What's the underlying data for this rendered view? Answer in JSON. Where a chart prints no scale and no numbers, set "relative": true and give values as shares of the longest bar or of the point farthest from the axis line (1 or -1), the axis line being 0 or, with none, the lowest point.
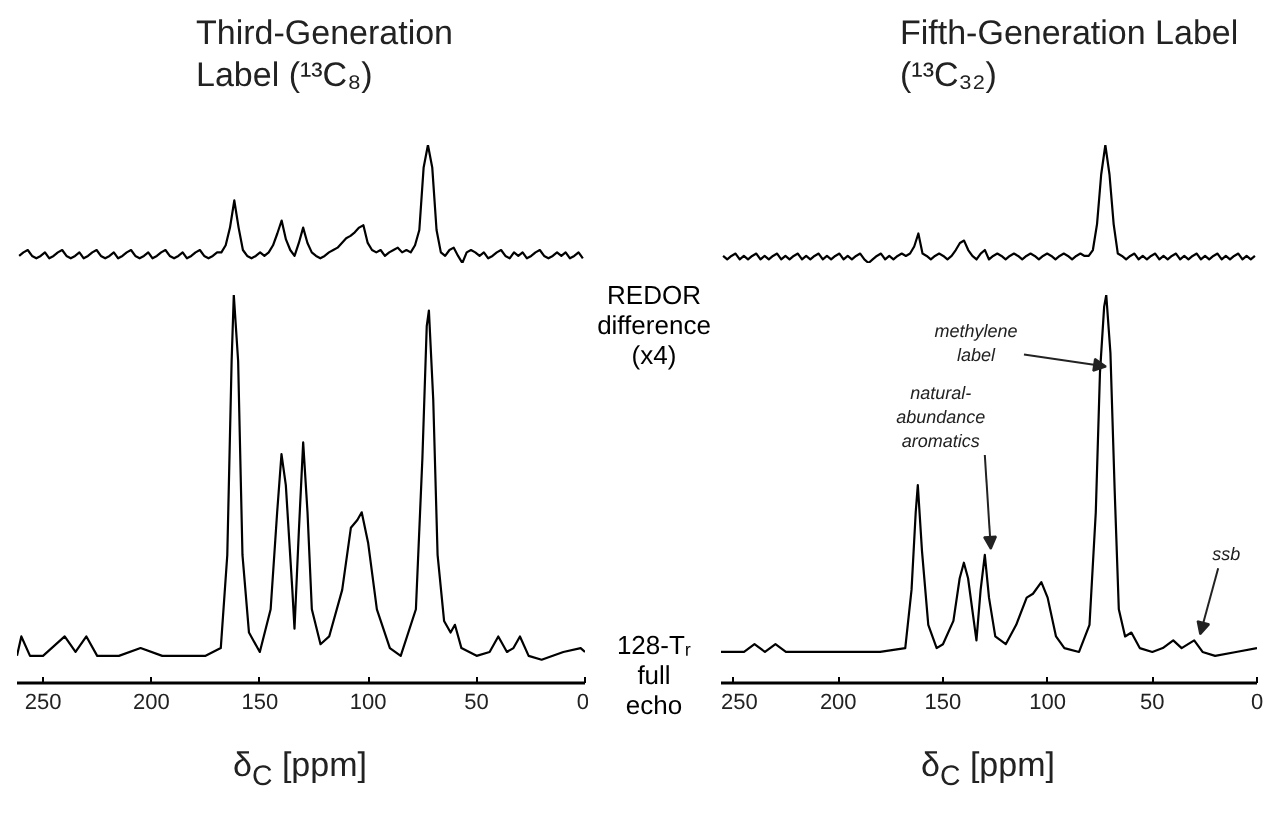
{
  "chart_data": [
    {
      "type": "line",
      "title": "Third-Generation Label (¹³C₈)",
      "relative": true,
      "tick_labels": false,
      "categories": [
        null,
        null,
        null,
        null,
        null,
        null,
        null,
        null,
        null,
        null,
        null,
        null,
        null,
        null,
        null,
        null,
        null,
        null,
        null,
        null,
        null,
        null,
        null,
        null,
        null,
        null,
        null,
        null,
        null,
        null,
        null,
        null,
        null,
        null,
        null,
        null,
        null,
        null,
        null,
        null,
        null,
        null,
        null,
        null,
        null,
        null,
        null,
        null,
        null,
        null,
        null,
        null,
        null,
        null,
        null,
        null,
        null,
        null,
        null,
        null,
        null,
        null,
        null,
        null,
        null,
        null,
        null,
        null,
        null,
        null,
        null,
        null,
        null,
        null,
        null,
        null,
        null,
        null,
        null,
        null,
        null,
        null,
        null,
        null,
        null,
        null,
        null,
        null,
        null,
        null,
        null,
        null,
        null,
        null,
        null,
        null,
        null,
        null,
        null,
        null,
        null,
        null,
        null,
        null,
        null,
        null,
        null,
        null,
        null,
        null,
        null,
        null,
        null,
        null,
        null,
        null,
        null,
        null,
        null,
        null,
        null,
        null,
        null,
        null,
        null,
        null,
        null,
        null,
        null,
        null,
        null,
        null
      ],
      "series": [
        {
          "name": "REDOR difference (x4)",
          "color": "#000000",
          "values": [
            0.06,
            0.09,
            0.11,
            0.06,
            0.04,
            0.06,
            0.09,
            0.04,
            0.06,
            0.09,
            0.11,
            0.06,
            0.04,
            0.06,
            0.09,
            0.04,
            0.06,
            0.09,
            0.11,
            0.06,
            0.04,
            0.06,
            0.09,
            0.04,
            0.06,
            0.09,
            0.11,
            0.06,
            0.04,
            0.06,
            0.09,
            0.04,
            0.06,
            0.09,
            0.11,
            0.06,
            0.04,
            0.06,
            0.09,
            0.04,
            0.06,
            0.09,
            0.11,
            0.06,
            0.04,
            0.06,
            0.09,
            0.09,
            0.15,
            0.3,
            0.53,
            0.3,
            0.11,
            0.06,
            0.04,
            0.06,
            0.09,
            0.06,
            0.09,
            0.15,
            0.25,
            0.36,
            0.2,
            0.11,
            0.06,
            0.17,
            0.3,
            0.17,
            0.09,
            0.06,
            0.04,
            0.06,
            0.09,
            0.11,
            0.13,
            0.17,
            0.21,
            0.23,
            0.26,
            0.3,
            0.32,
            0.17,
            0.11,
            0.09,
            0.11,
            0.06,
            0.09,
            0.11,
            0.13,
            0.09,
            0.11,
            0.09,
            0.15,
            0.28,
            0.81,
            1.0,
            0.81,
            0.28,
            0.09,
            0.06,
            0.11,
            0.13,
            0.06,
            0.0,
            0.09,
            0.11,
            0.09,
            0.06,
            0.09,
            0.04,
            0.06,
            0.09,
            0.11,
            0.06,
            0.04,
            0.09,
            0.06,
            0.09,
            0.04,
            0.06,
            0.09,
            0.11,
            0.06,
            0.04,
            0.06,
            0.09,
            0.06,
            0.09,
            0.04,
            0.06,
            0.09,
            0.04
          ]
        }
      ]
    },
    {
      "type": "line",
      "xlabel": "δ$_{C}$ [ppm]",
      "relative": true,
      "xlim": [
        262,
        0
      ],
      "xticks": [
        250,
        200,
        150,
        100,
        50,
        0
      ],
      "tick_labels": "x",
      "x": [
        262,
        260,
        256,
        250,
        240,
        235,
        230,
        225,
        215,
        205,
        195,
        175,
        168,
        165,
        163,
        162,
        160,
        158,
        155,
        150,
        145,
        142,
        140,
        138,
        135,
        134,
        132,
        130,
        128,
        126,
        122,
        118,
        112,
        108,
        105,
        103,
        100,
        96,
        90,
        85,
        78,
        75,
        73,
        72,
        70,
        68,
        65,
        62,
        60,
        57,
        50,
        44,
        40,
        36,
        33,
        30,
        26,
        20,
        10,
        2,
        0
      ],
      "series": [
        {
          "name": "128-Tᵣ full echo",
          "color": "#000000",
          "values": [
            0.07,
            0.12,
            0.07,
            0.07,
            0.12,
            0.08,
            0.12,
            0.07,
            0.07,
            0.09,
            0.07,
            0.07,
            0.09,
            0.33,
            0.83,
            1.0,
            0.83,
            0.33,
            0.13,
            0.08,
            0.19,
            0.44,
            0.59,
            0.51,
            0.24,
            0.14,
            0.39,
            0.62,
            0.44,
            0.19,
            0.1,
            0.12,
            0.24,
            0.4,
            0.42,
            0.44,
            0.36,
            0.19,
            0.09,
            0.07,
            0.19,
            0.58,
            0.92,
            0.96,
            0.73,
            0.33,
            0.16,
            0.13,
            0.15,
            0.09,
            0.07,
            0.08,
            0.12,
            0.08,
            0.09,
            0.12,
            0.07,
            0.06,
            0.08,
            0.09,
            0.08
          ]
        }
      ]
    },
    {
      "type": "line",
      "title": "Fifth-Generation Label (¹³C₃₂)",
      "relative": true,
      "tick_labels": false,
      "categories": [
        null,
        null,
        null,
        null,
        null,
        null,
        null,
        null,
        null,
        null,
        null,
        null,
        null,
        null,
        null,
        null,
        null,
        null,
        null,
        null,
        null,
        null,
        null,
        null,
        null,
        null,
        null,
        null,
        null,
        null,
        null,
        null,
        null,
        null,
        null,
        null,
        null,
        null,
        null,
        null,
        null,
        null,
        null,
        null,
        null,
        null,
        null,
        null,
        null,
        null,
        null,
        null,
        null,
        null,
        null,
        null,
        null,
        null,
        null,
        null,
        null,
        null,
        null,
        null,
        null,
        null,
        null,
        null,
        null,
        null,
        null,
        null,
        null,
        null,
        null,
        null,
        null,
        null,
        null,
        null,
        null,
        null,
        null,
        null,
        null,
        null,
        null,
        null,
        null,
        null,
        null,
        null,
        null,
        null,
        null,
        null,
        null,
        null,
        null,
        null,
        null,
        null,
        null,
        null,
        null,
        null,
        null,
        null,
        null,
        null,
        null,
        null,
        null,
        null,
        null,
        null,
        null,
        null,
        null,
        null,
        null,
        null,
        null,
        null,
        null,
        null,
        null,
        null,
        null
      ],
      "series": [
        {
          "color": "#000000",
          "values": [
            0.06,
            0.03,
            0.06,
            0.08,
            0.03,
            0.06,
            0.03,
            0.06,
            0.08,
            0.03,
            0.06,
            0.03,
            0.06,
            0.08,
            0.03,
            0.06,
            0.03,
            0.06,
            0.08,
            0.03,
            0.06,
            0.03,
            0.06,
            0.08,
            0.03,
            0.06,
            0.03,
            0.06,
            0.08,
            0.03,
            0.06,
            0.03,
            0.06,
            0.08,
            0.03,
            0.0,
            0.03,
            0.06,
            0.08,
            0.03,
            0.06,
            0.03,
            0.06,
            0.08,
            0.06,
            0.08,
            0.14,
            0.25,
            0.08,
            0.06,
            0.03,
            0.06,
            0.08,
            0.06,
            0.03,
            0.06,
            0.11,
            0.17,
            0.19,
            0.11,
            0.06,
            0.03,
            0.08,
            0.11,
            0.03,
            0.06,
            0.08,
            0.06,
            0.03,
            0.06,
            0.08,
            0.06,
            0.03,
            0.06,
            0.08,
            0.06,
            0.03,
            0.06,
            0.08,
            0.06,
            0.03,
            0.06,
            0.08,
            0.06,
            0.03,
            0.06,
            0.08,
            0.06,
            0.06,
            0.11,
            0.33,
            0.75,
            1.0,
            0.75,
            0.33,
            0.08,
            0.06,
            0.03,
            0.06,
            0.08,
            0.03,
            0.06,
            0.03,
            0.06,
            0.08,
            0.03,
            0.06,
            0.03,
            0.06,
            0.08,
            0.03,
            0.06,
            0.03,
            0.06,
            0.08,
            0.03,
            0.06,
            0.03,
            0.06,
            0.08,
            0.03,
            0.06,
            0.03,
            0.06,
            0.08,
            0.03,
            0.06,
            0.03,
            0.06
          ]
        }
      ]
    },
    {
      "type": "line",
      "xlabel": "δ$_{C}$ [ppm]",
      "relative": true,
      "xlim": [
        256,
        0
      ],
      "xticks": [
        250,
        200,
        150,
        100,
        50,
        0
      ],
      "tick_labels": "x",
      "x": [
        256,
        245,
        240,
        235,
        230,
        225,
        210,
        200,
        180,
        168,
        165,
        163,
        162,
        160,
        157,
        153,
        150,
        145,
        142,
        140,
        138,
        135,
        134,
        132,
        130,
        128,
        125,
        120,
        115,
        110,
        107,
        103,
        100,
        96,
        92,
        85,
        80,
        77,
        75,
        73,
        72,
        70,
        68,
        66,
        63,
        60,
        56,
        50,
        45,
        40,
        36,
        30,
        26,
        20,
        10,
        0
      ],
      "series": [
        {
          "color": "#000000",
          "values": [
            0.08,
            0.08,
            0.1,
            0.08,
            0.1,
            0.08,
            0.08,
            0.08,
            0.08,
            0.09,
            0.24,
            0.44,
            0.51,
            0.34,
            0.15,
            0.09,
            0.1,
            0.16,
            0.27,
            0.31,
            0.27,
            0.15,
            0.11,
            0.24,
            0.33,
            0.22,
            0.12,
            0.1,
            0.15,
            0.22,
            0.23,
            0.26,
            0.22,
            0.12,
            0.09,
            0.08,
            0.15,
            0.44,
            0.8,
            0.97,
            1.0,
            0.85,
            0.5,
            0.19,
            0.12,
            0.13,
            0.09,
            0.08,
            0.09,
            0.11,
            0.09,
            0.11,
            0.08,
            0.07,
            0.08,
            0.09
          ]
        }
      ],
      "annotations": [
        {
          "text": "methylene label",
          "x": 75,
          "y": 0.8
        },
        {
          "text": "natural-abundance aromatics",
          "x": 130,
          "y": 0.33
        },
        {
          "text": "ssb",
          "x": 30,
          "y": 0.11
        }
      ]
    }
  ]
}
